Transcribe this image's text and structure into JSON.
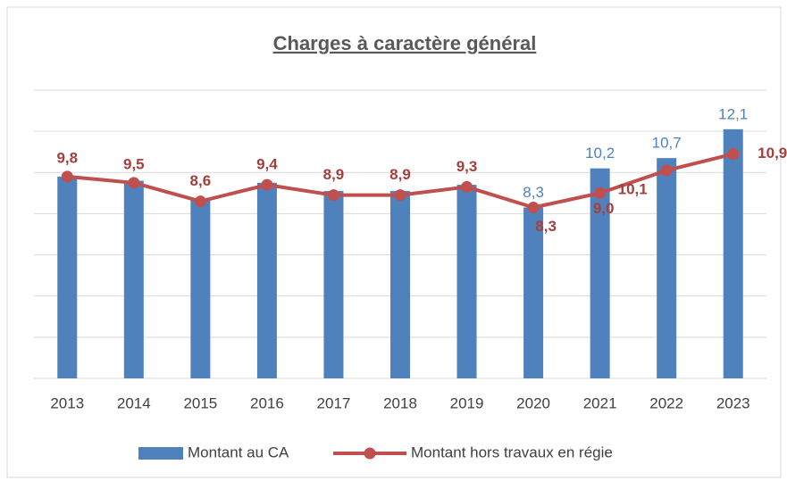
{
  "chart_data": {
    "type": "bar",
    "title": "Charges à caractère général",
    "categories": [
      "2013",
      "2014",
      "2015",
      "2016",
      "2017",
      "2018",
      "2019",
      "2020",
      "2021",
      "2022",
      "2023"
    ],
    "series": [
      {
        "name": "Montant au CA",
        "type": "bar",
        "color": "#4f81bd",
        "values": [
          9.8,
          9.6,
          8.7,
          9.5,
          9.1,
          9.1,
          9.4,
          8.3,
          10.2,
          10.7,
          12.1
        ],
        "value_labels": [
          null,
          null,
          null,
          null,
          null,
          null,
          null,
          "8,3",
          "10,2",
          "10,7",
          "12,1"
        ]
      },
      {
        "name": "Montant hors travaux en régie",
        "type": "line",
        "color": "#c0504d",
        "values": [
          9.8,
          9.5,
          8.6,
          9.4,
          8.9,
          8.9,
          9.3,
          8.3,
          9.0,
          10.1,
          10.9
        ],
        "value_labels": [
          "9,8",
          "9,5",
          "8,6",
          "9,4",
          "8,9",
          "8,9",
          "9,3",
          "8,3",
          "9,0",
          "10,1",
          "10,9"
        ]
      }
    ],
    "ylim": [
      0,
      14
    ],
    "yticks": [
      0,
      2,
      4,
      6,
      8,
      10,
      12,
      14
    ],
    "grid": true,
    "legend": "bottom"
  }
}
